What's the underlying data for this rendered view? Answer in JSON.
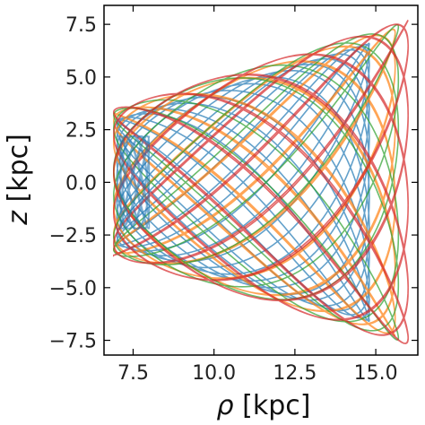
{
  "chart_data": {
    "type": "line",
    "title": "",
    "xlabel_symbol": "ρ",
    "xlabel_unit": " [kpc]",
    "ylabel_symbol": "z",
    "ylabel_unit": " [kpc]",
    "xlim": [
      6.6,
      16.3
    ],
    "ylim": [
      -8.2,
      8.4
    ],
    "xticks": [
      7.5,
      10.0,
      12.5,
      15.0
    ],
    "xtick_labels": [
      "7.5",
      "10.0",
      "12.5",
      "15.0"
    ],
    "yticks": [
      -7.5,
      -5.0,
      -2.5,
      0.0,
      2.5,
      5.0,
      7.5
    ],
    "ytick_labels": [
      "−7.5",
      "−5.0",
      "−2.5",
      "0.0",
      "2.5",
      "5.0",
      "7.5"
    ],
    "grid": false,
    "legend": false,
    "colors": [
      "#1f77b4",
      "#ff7f0e",
      "#2ca02c",
      "#d62728"
    ],
    "series": [
      {
        "color": "#1f77b4",
        "rho_range": [
          7.0,
          14.8
        ],
        "z_amplitude": 6.6,
        "radial_turns": 14,
        "vertical_turns": 17
      },
      {
        "color": "#ff7f0e",
        "rho_range": [
          6.9,
          15.6
        ],
        "z_amplitude": 7.3,
        "radial_turns": 13,
        "vertical_turns": 15
      },
      {
        "color": "#2ca02c",
        "rho_range": [
          6.9,
          15.7
        ],
        "z_amplitude": 7.5,
        "radial_turns": 12,
        "vertical_turns": 14
      },
      {
        "color": "#d62728",
        "rho_range": [
          6.9,
          16.0
        ],
        "z_amplitude": 7.7,
        "radial_turns": 11,
        "vertical_turns": 13
      }
    ]
  }
}
